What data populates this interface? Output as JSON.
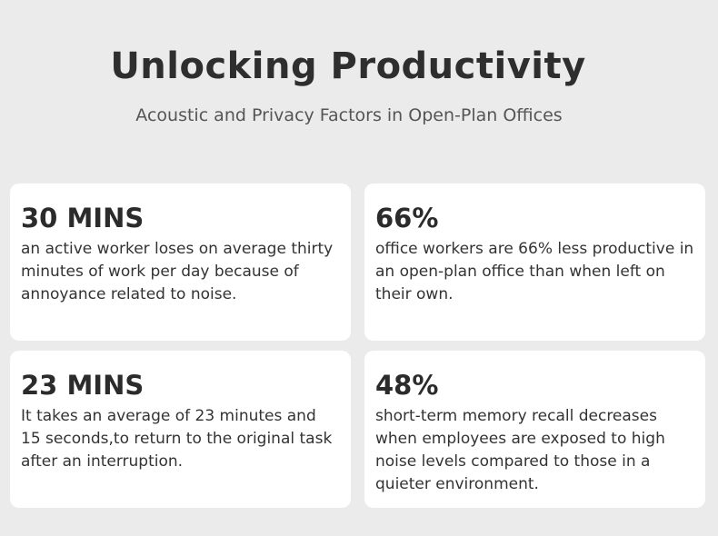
{
  "header": {
    "title": "Unlocking Productivity",
    "subtitle": "Acoustic and Privacy Factors in Open-Plan Offices"
  },
  "cards": [
    {
      "stat": "30 MINS",
      "text": "an active worker loses on average thirty minutes of work per day because of annoyance related to noise."
    },
    {
      "stat": "66%",
      "text": "office workers are 66% less productive in an open-plan office than when left on their own."
    },
    {
      "stat": "23 MINS",
      "text": "It takes an average of 23 minutes and 15 seconds,to return to the original task after an interruption."
    },
    {
      "stat": "48%",
      "text": "short-term memory recall decreases when employees are exposed to high noise levels compared to those in a quieter environment."
    }
  ]
}
